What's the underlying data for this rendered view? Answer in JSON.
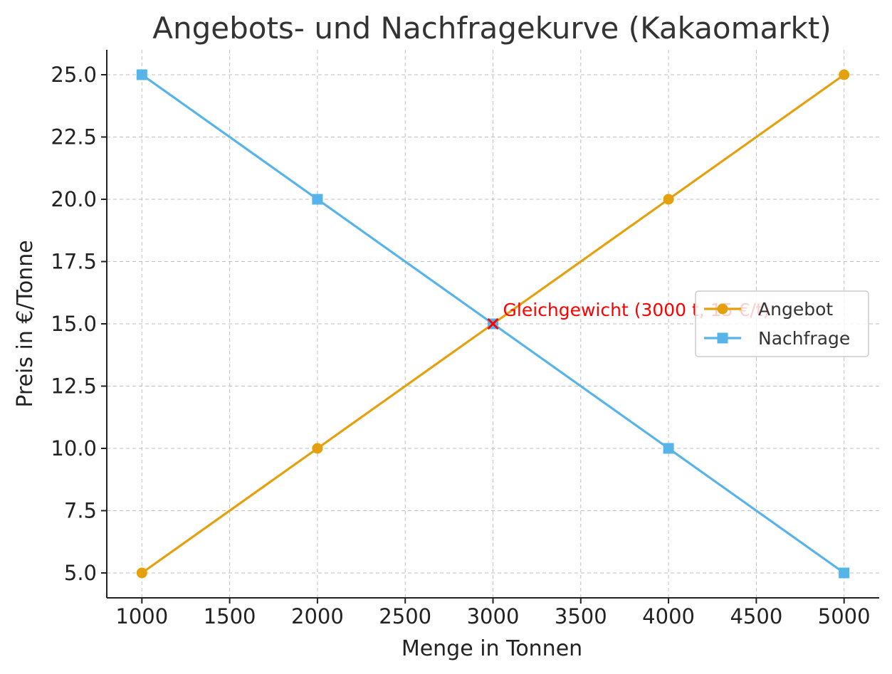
{
  "chart_data": {
    "type": "line",
    "title": "Angebots- und Nachfragekurve (Kakaomarkt)",
    "xlabel": "Menge in Tonnen",
    "ylabel": "Preis in €/Tonne",
    "xlim": [
      800,
      5200
    ],
    "ylim": [
      4,
      26
    ],
    "xticks": [
      1000,
      1500,
      2000,
      2500,
      3000,
      3500,
      4000,
      4500,
      5000
    ],
    "xtick_labels": [
      "1000",
      "1500",
      "2000",
      "2500",
      "3000",
      "3500",
      "4000",
      "4500",
      "5000"
    ],
    "yticks": [
      5.0,
      7.5,
      10.0,
      12.5,
      15.0,
      17.5,
      20.0,
      22.5,
      25.0
    ],
    "ytick_labels": [
      "5.0",
      "7.5",
      "10.0",
      "12.5",
      "15.0",
      "17.5",
      "20.0",
      "22.5",
      "25.0"
    ],
    "grid": true,
    "legend_position": "center-right",
    "x": [
      1000,
      2000,
      3000,
      4000,
      5000
    ],
    "series": [
      {
        "name": "Angebot",
        "values": [
          5,
          10,
          15,
          20,
          25
        ],
        "color": "#e5a00d",
        "marker": "circle"
      },
      {
        "name": "Nachfrage",
        "values": [
          25,
          20,
          15,
          10,
          5
        ],
        "color": "#56b4e9",
        "marker": "square"
      }
    ],
    "annotation": {
      "text": "Gleichgewicht (3000 t, 15 €/t)",
      "x": 3000,
      "y": 15,
      "marker": "x",
      "color": "#ff0000"
    }
  }
}
